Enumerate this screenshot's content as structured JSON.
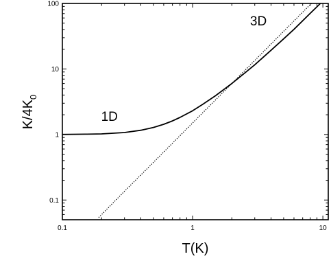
{
  "chart_data": {
    "type": "line",
    "title": "",
    "xlabel": "T(K)",
    "ylabel": "K/4K",
    "ylabel_subscript": "0",
    "x_scale": "log",
    "y_scale": "log",
    "xlim": [
      0.1,
      11
    ],
    "ylim": [
      0.05,
      100
    ],
    "x_ticks": [
      {
        "value": 0.1,
        "label": "0.1"
      },
      {
        "value": 1,
        "label": "1"
      },
      {
        "value": 10,
        "label": "10"
      }
    ],
    "y_ticks": [
      {
        "value": 0.1,
        "label": "0.1"
      },
      {
        "value": 1,
        "label": "1"
      },
      {
        "value": 10,
        "label": "10"
      },
      {
        "value": 100,
        "label": "100"
      }
    ],
    "grid": false,
    "legend": "none",
    "series": [
      {
        "style": "solid",
        "color": "#000000",
        "x": [
          0.1,
          0.15,
          0.2,
          0.3,
          0.4,
          0.5,
          0.6,
          0.7,
          0.8,
          1.0,
          1.2,
          1.5,
          2.0,
          2.5,
          3.0,
          4.0,
          5.0,
          6.0,
          8.0,
          10.0,
          11.0
        ],
        "y": [
          1.0,
          1.01,
          1.02,
          1.07,
          1.16,
          1.28,
          1.43,
          1.61,
          1.82,
          2.3,
          2.9,
          3.9,
          6.0,
          8.6,
          11.6,
          19.3,
          28.8,
          40.3,
          70.6,
          108.9,
          131.4
        ]
      },
      {
        "style": "dotted",
        "color": "#000000",
        "x": [
          0.19,
          0.3,
          0.5,
          1.0,
          2.0,
          3.0,
          5.0,
          8.0,
          10.0
        ],
        "y": [
          0.054,
          0.136,
          0.375,
          1.5,
          6.0,
          13.5,
          37.5,
          96.0,
          150.0
        ]
      }
    ],
    "annotations": [
      {
        "text": "1D",
        "x": 0.23,
        "y": 1.9
      },
      {
        "text": "3D",
        "x": 3.2,
        "y": 55
      }
    ]
  }
}
